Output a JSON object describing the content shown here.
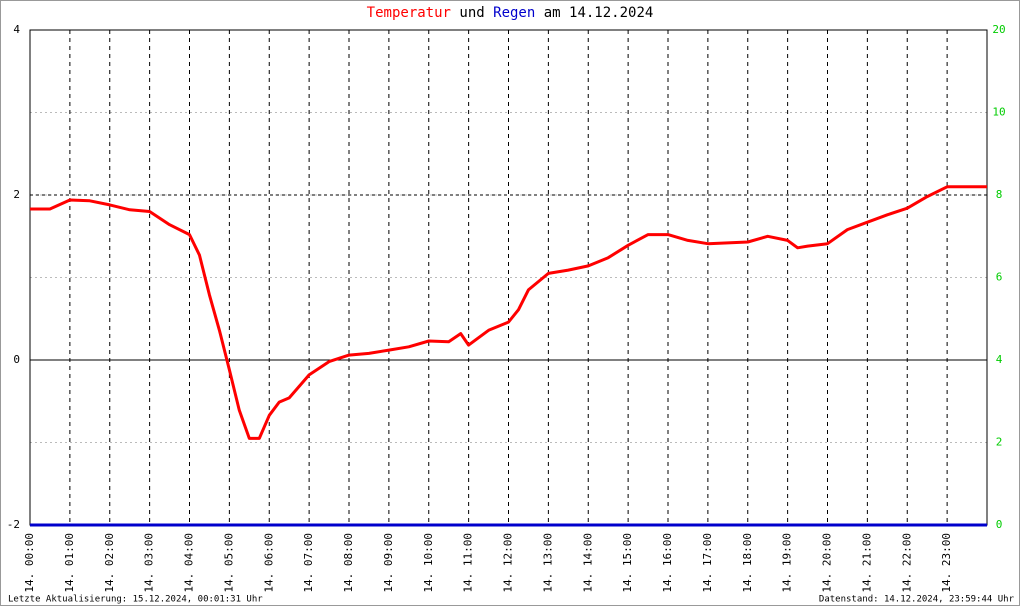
{
  "chart_data": {
    "type": "line",
    "title_parts": [
      "und",
      "am 14.12.2024"
    ],
    "footer_left": "Letzte Aktualisierung: 15.12.2024, 00:01:31 Uhr",
    "footer_right": "Datenstand: 14.12.2024, 23:59:44 Uhr",
    "y2_top_label": "20",
    "xlim": [
      0,
      24
    ],
    "xticks": [
      {
        "value": 0,
        "label": "14. 00:00"
      },
      {
        "value": 1,
        "label": "14. 01:00"
      },
      {
        "value": 2,
        "label": "14. 02:00"
      },
      {
        "value": 3,
        "label": "14. 03:00"
      },
      {
        "value": 4,
        "label": "14. 04:00"
      },
      {
        "value": 5,
        "label": "14. 05:00"
      },
      {
        "value": 6,
        "label": "14. 06:00"
      },
      {
        "value": 7,
        "label": "14. 07:00"
      },
      {
        "value": 8,
        "label": "14. 08:00"
      },
      {
        "value": 9,
        "label": "14. 09:00"
      },
      {
        "value": 10,
        "label": "14. 10:00"
      },
      {
        "value": 11,
        "label": "14. 11:00"
      },
      {
        "value": 12,
        "label": "14. 12:00"
      },
      {
        "value": 13,
        "label": "14. 13:00"
      },
      {
        "value": 14,
        "label": "14. 14:00"
      },
      {
        "value": 15,
        "label": "14. 15:00"
      },
      {
        "value": 16,
        "label": "14. 16:00"
      },
      {
        "value": 17,
        "label": "14. 17:00"
      },
      {
        "value": 18,
        "label": "14. 18:00"
      },
      {
        "value": 19,
        "label": "14. 19:00"
      },
      {
        "value": 20,
        "label": "14. 20:00"
      },
      {
        "value": 21,
        "label": "14. 21:00"
      },
      {
        "value": 22,
        "label": "14. 22:00"
      },
      {
        "value": 23,
        "label": "14. 23:00"
      }
    ],
    "ylim": [
      -2,
      4
    ],
    "yticks": [
      -2,
      0,
      2,
      4
    ],
    "y2lim": [
      0,
      12
    ],
    "y2ticks": [
      0,
      2,
      4,
      6,
      8,
      10
    ],
    "y2_color": "#00cc00",
    "grid": true,
    "series": [
      {
        "name": "Temperatur",
        "color": "#ff0000",
        "x": [
          0,
          0.5,
          1,
          1.5,
          2,
          2.5,
          3,
          3.5,
          4,
          4.25,
          4.5,
          4.75,
          5,
          5.25,
          5.5,
          5.75,
          6,
          6.25,
          6.5,
          7,
          7.5,
          8,
          8.5,
          9,
          9.5,
          10,
          10.5,
          10.8,
          11,
          11.5,
          12,
          12.25,
          12.5,
          13,
          13.5,
          14,
          14.5,
          15,
          15.5,
          16,
          16.5,
          17,
          17.5,
          18,
          18.5,
          19,
          19.25,
          19.5,
          20,
          20.5,
          21,
          21.5,
          22,
          22.5,
          23,
          23.5,
          24
        ],
        "values": [
          1.83,
          1.83,
          1.94,
          1.93,
          1.88,
          1.82,
          1.8,
          1.64,
          1.52,
          1.27,
          0.79,
          0.36,
          -0.12,
          -0.61,
          -0.95,
          -0.95,
          -0.67,
          -0.51,
          -0.46,
          -0.18,
          -0.02,
          0.06,
          0.08,
          0.12,
          0.16,
          0.23,
          0.22,
          0.32,
          0.18,
          0.36,
          0.46,
          0.61,
          0.85,
          1.05,
          1.09,
          1.14,
          1.24,
          1.39,
          1.52,
          1.52,
          1.45,
          1.41,
          1.42,
          1.43,
          1.5,
          1.45,
          1.36,
          1.38,
          1.41,
          1.58,
          1.67,
          1.76,
          1.84,
          1.98,
          2.1,
          2.1,
          2.1
        ]
      },
      {
        "name": "Regen",
        "color": "#0000cc",
        "axis": "y2",
        "x": [
          0,
          24
        ],
        "values": [
          0,
          0
        ]
      }
    ]
  }
}
